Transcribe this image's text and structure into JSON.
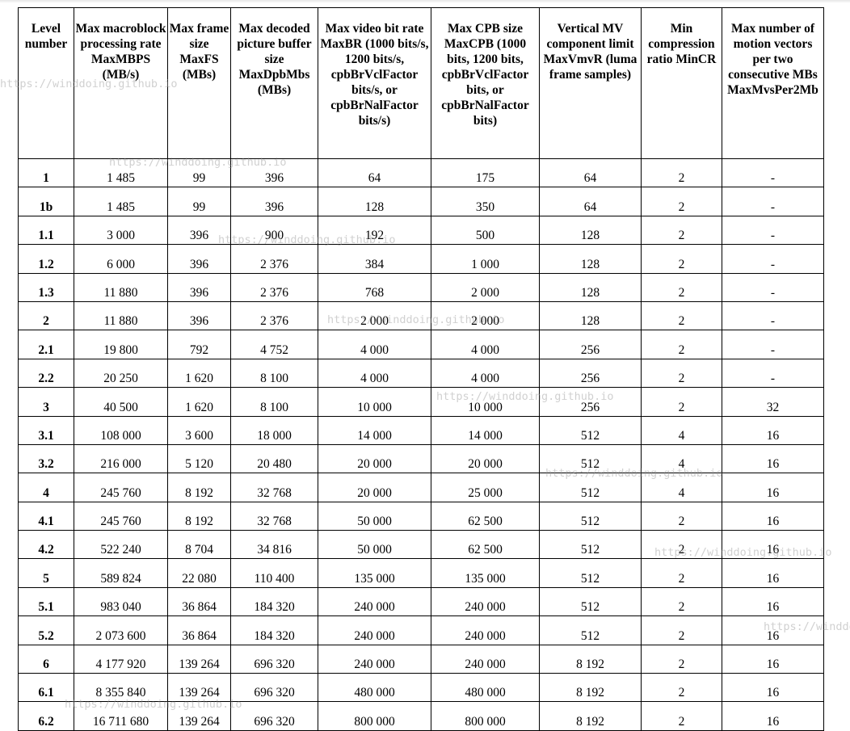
{
  "headers": [
    "Level number",
    "Max macroblock processing rate MaxMBPS (MB/s)",
    "Max frame size MaxFS (MBs)",
    "Max decoded picture buffer size MaxDpbMbs (MBs)",
    "Max video bit rate MaxBR (1000 bits/s, 1200 bits/s, cpbBrVclFactor bits/s, or cpbBrNalFactor bits/s)",
    "Max CPB size MaxCPB (1000 bits, 1200 bits, cpbBrVclFactor bits, or cpbBrNalFactor bits)",
    "Vertical MV component limit MaxVmvR (luma frame samples)",
    "Min compression ratio MinCR",
    "Max number of motion vectors per two consecutive MBs MaxMvsPer2Mb"
  ],
  "rows": [
    [
      "1",
      "1 485",
      "99",
      "396",
      "64",
      "175",
      "64",
      "2",
      "-"
    ],
    [
      "1b",
      "1 485",
      "99",
      "396",
      "128",
      "350",
      "64",
      "2",
      "-"
    ],
    [
      "1.1",
      "3 000",
      "396",
      "900",
      "192",
      "500",
      "128",
      "2",
      "-"
    ],
    [
      "1.2",
      "6 000",
      "396",
      "2 376",
      "384",
      "1 000",
      "128",
      "2",
      "-"
    ],
    [
      "1.3",
      "11 880",
      "396",
      "2 376",
      "768",
      "2 000",
      "128",
      "2",
      "-"
    ],
    [
      "2",
      "11 880",
      "396",
      "2 376",
      "2 000",
      "2 000",
      "128",
      "2",
      "-"
    ],
    [
      "2.1",
      "19 800",
      "792",
      "4 752",
      "4 000",
      "4 000",
      "256",
      "2",
      "-"
    ],
    [
      "2.2",
      "20 250",
      "1 620",
      "8 100",
      "4 000",
      "4 000",
      "256",
      "2",
      "-"
    ],
    [
      "3",
      "40 500",
      "1 620",
      "8 100",
      "10 000",
      "10 000",
      "256",
      "2",
      "32"
    ],
    [
      "3.1",
      "108 000",
      "3 600",
      "18 000",
      "14 000",
      "14 000",
      "512",
      "4",
      "16"
    ],
    [
      "3.2",
      "216 000",
      "5 120",
      "20 480",
      "20 000",
      "20 000",
      "512",
      "4",
      "16"
    ],
    [
      "4",
      "245 760",
      "8 192",
      "32 768",
      "20 000",
      "25 000",
      "512",
      "4",
      "16"
    ],
    [
      "4.1",
      "245 760",
      "8 192",
      "32 768",
      "50 000",
      "62 500",
      "512",
      "2",
      "16"
    ],
    [
      "4.2",
      "522 240",
      "8 704",
      "34 816",
      "50 000",
      "62 500",
      "512",
      "2",
      "16"
    ],
    [
      "5",
      "589 824",
      "22 080",
      "110 400",
      "135 000",
      "135 000",
      "512",
      "2",
      "16"
    ],
    [
      "5.1",
      "983 040",
      "36 864",
      "184 320",
      "240 000",
      "240 000",
      "512",
      "2",
      "16"
    ],
    [
      "5.2",
      "2 073 600",
      "36 864",
      "184 320",
      "240 000",
      "240 000",
      "512",
      "2",
      "16"
    ],
    [
      "6",
      "4 177 920",
      "139 264",
      "696 320",
      "240 000",
      "240 000",
      "8 192",
      "2",
      "16"
    ],
    [
      "6.1",
      "8 355 840",
      "139 264",
      "696 320",
      "480 000",
      "480 000",
      "8 192",
      "2",
      "16"
    ],
    [
      "6.2",
      "16 711 680",
      "139 264",
      "696 320",
      "800 000",
      "800 000",
      "8 192",
      "2",
      "16"
    ]
  ],
  "watermark": "https://winddoing.github.io"
}
